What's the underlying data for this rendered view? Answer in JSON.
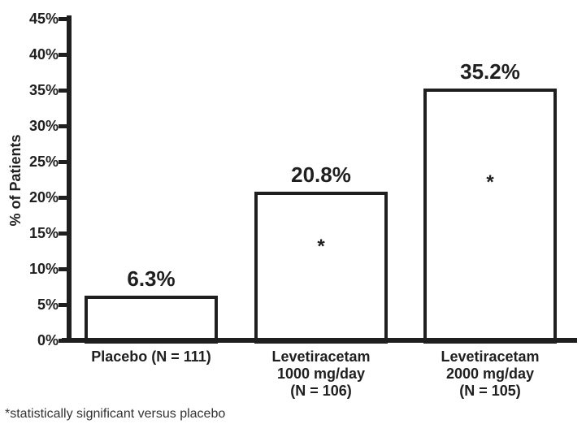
{
  "chart_data": {
    "type": "bar",
    "title": "",
    "xlabel": "",
    "ylabel": "% of Patients",
    "ylim": [
      0,
      45
    ],
    "ytick_step": 5,
    "ytick_suffix": "%",
    "grid": false,
    "legend": false,
    "categories": [
      "Placebo (N = 111)",
      "Levetiracetam\n1000 mg/day\n(N = 106)",
      "Levetiracetam\n2000 mg/day\n(N = 105)"
    ],
    "values": [
      6.3,
      20.8,
      35.2
    ],
    "value_labels": [
      "6.3%",
      "20.8%",
      "35.2%"
    ],
    "significance_markers": [
      "",
      "*",
      "*"
    ],
    "bar_fill": "#ffffff",
    "bar_border_color": "#1f1f1f",
    "text_color": "#1f1f1f"
  },
  "footnote": "*statistically significant versus placebo"
}
